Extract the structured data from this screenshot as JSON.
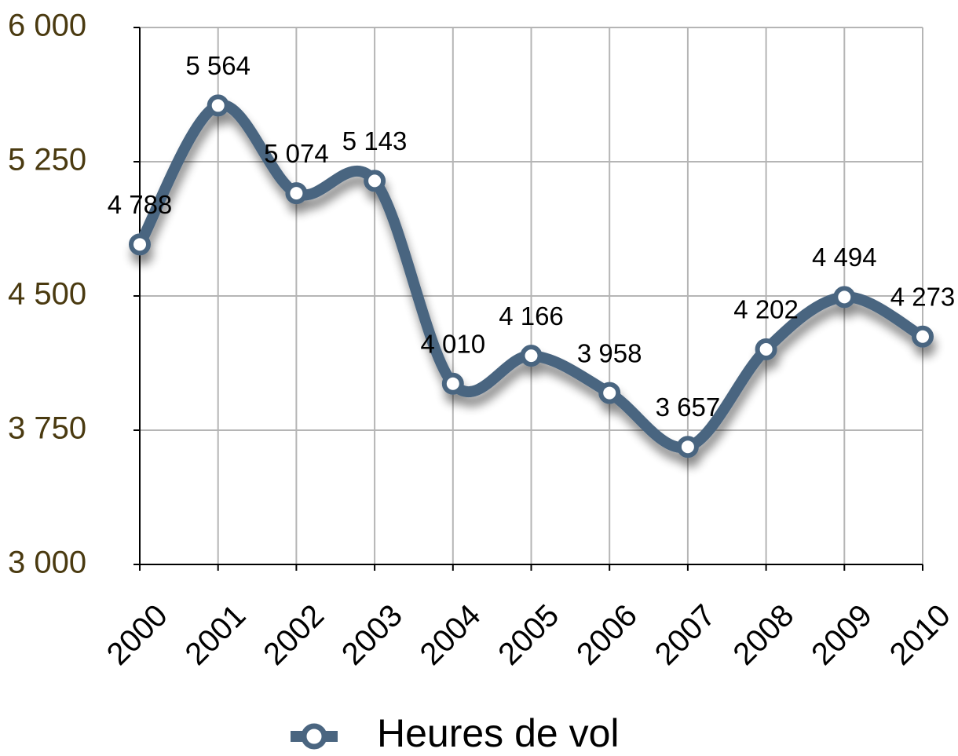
{
  "chart_data": {
    "type": "line",
    "categories": [
      "2000",
      "2001",
      "2002",
      "2003",
      "2004",
      "2005",
      "2006",
      "2007",
      "2008",
      "2009",
      "2010"
    ],
    "series": [
      {
        "name": "Heures de vol",
        "color": "#4a6580",
        "values": [
          4788,
          5564,
          5074,
          5143,
          4010,
          4166,
          3958,
          3657,
          4202,
          4494,
          4273
        ],
        "value_labels": [
          "4 788",
          "5 564",
          "5 074",
          "5 143",
          "4 010",
          "4 166",
          "3 958",
          "3 657",
          "4 202",
          "4 494",
          "4 273"
        ]
      }
    ],
    "ylim": [
      3000,
      6000
    ],
    "yticks": [
      {
        "value": 3000,
        "label": "3 000"
      },
      {
        "value": 3750,
        "label": "3 750"
      },
      {
        "value": 4500,
        "label": "4 500"
      },
      {
        "value": 5250,
        "label": "5 250"
      },
      {
        "value": 6000,
        "label": "6 000"
      }
    ],
    "grid": true,
    "legend": "bottom",
    "smooth": true
  }
}
